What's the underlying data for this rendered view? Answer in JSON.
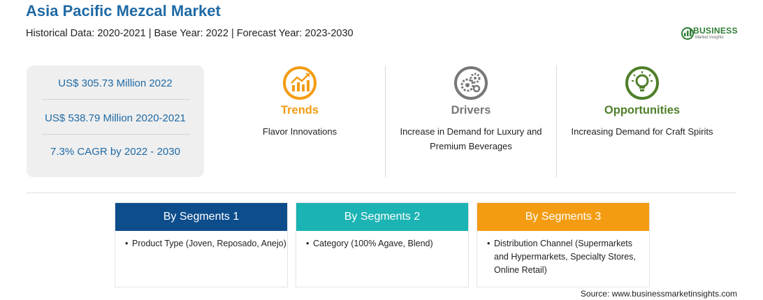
{
  "header": {
    "title": "Asia Pacific Mezcal Market",
    "subtitle": "Historical Data: 2020-2021 | Base Year: 2022 | Forecast Year: 2023-2030"
  },
  "logo": {
    "word": "BUSINESS",
    "sub": "Market Insights"
  },
  "stats": [
    "US$ 305.73 Million 2022",
    "US$ 538.79 Million 2020-2021",
    "7.3% CAGR by 2022 - 2030"
  ],
  "features": [
    {
      "title": "Trends",
      "text": "Flavor Innovations",
      "color": "#f39c12",
      "icon": "trend-chart-icon"
    },
    {
      "title": "Drivers",
      "text": "Increase in Demand for Luxury and Premium Beverages",
      "color": "#777777",
      "icon": "gears-icon"
    },
    {
      "title": "Opportunities",
      "text": "Increasing Demand for Craft Spirits",
      "color": "#4f7f2a",
      "icon": "lightbulb-icon"
    }
  ],
  "segments": [
    {
      "title": "By Segments 1",
      "color": "#0d4d8c",
      "bullet": "Product Type (Joven, Reposado, Anejo)"
    },
    {
      "title": "By Segments 2",
      "color": "#1bb3b3",
      "bullet": "Category (100% Agave, Blend)"
    },
    {
      "title": "By Segments 3",
      "color": "#f39c12",
      "bullet": "Distribution Channel (Supermarkets and Hypermarkets, Specialty Stores, Online Retail)"
    }
  ],
  "source": "Source: www.businessmarketinsights.com"
}
